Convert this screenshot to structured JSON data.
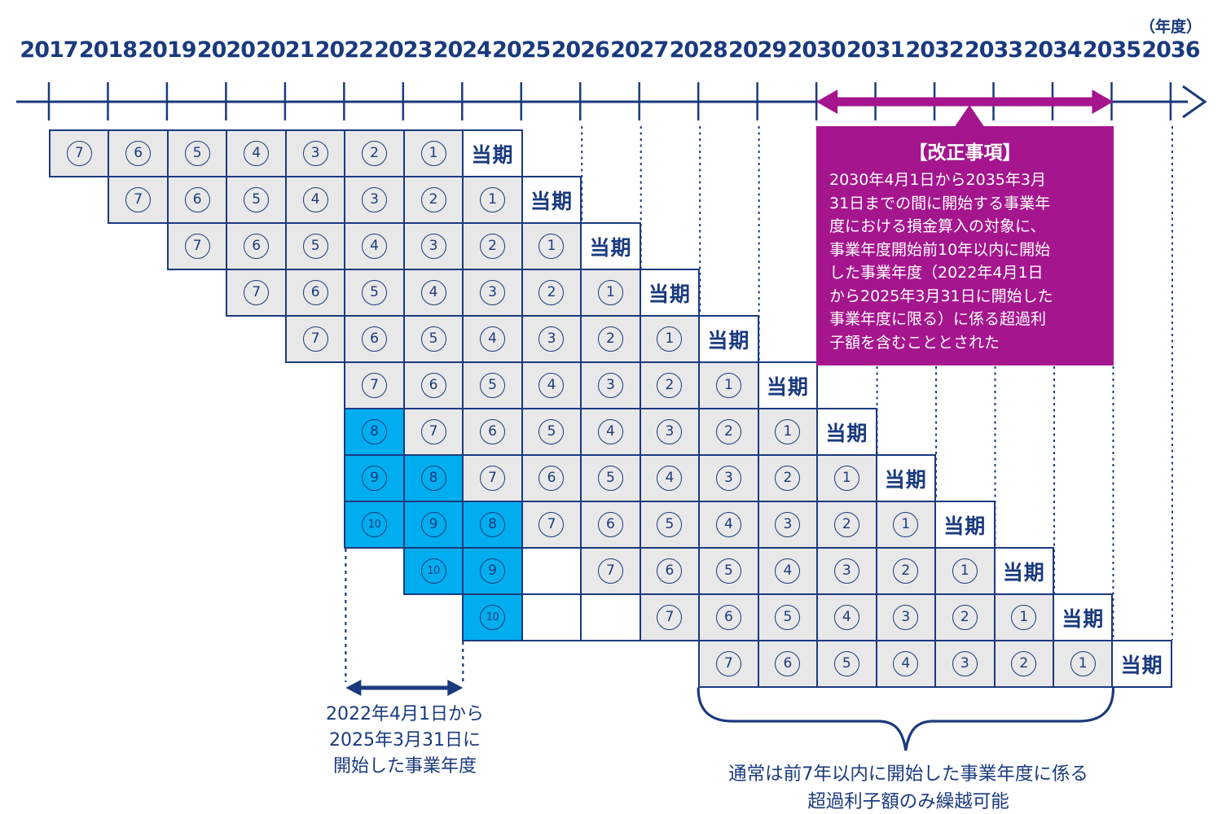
{
  "axis": {
    "unit": "（年度）",
    "years": [
      2017,
      2018,
      2019,
      2020,
      2021,
      2022,
      2023,
      2024,
      2025,
      2026,
      2027,
      2028,
      2029,
      2030,
      2031,
      2032,
      2033,
      2034,
      2035,
      2036
    ]
  },
  "revision_box": {
    "title": "【改正事項】",
    "lines": [
      "2030年4月1日から2035年3月",
      "31日までの間に開始する事業年",
      "度における損金算入の対象に、",
      "事業年度開始前10年以内に開始",
      "した事業年度（2022年4月1日",
      "から2025年3月31日に開始した",
      "事業年度に限る）に係る超過利",
      "子額を含むこととされた"
    ],
    "range_from_year": 2030,
    "range_to_year": 2035
  },
  "grid": {
    "current_label": "当期",
    "rows": [
      {
        "current_year": 2024,
        "cells": [
          [
            2017,
            "7",
            "g"
          ],
          [
            2018,
            "6",
            "g"
          ],
          [
            2019,
            "5",
            "g"
          ],
          [
            2020,
            "4",
            "g"
          ],
          [
            2021,
            "3",
            "g"
          ],
          [
            2022,
            "2",
            "g"
          ],
          [
            2023,
            "1",
            "g"
          ],
          [
            2024,
            "当期",
            "t"
          ]
        ]
      },
      {
        "current_year": 2025,
        "cells": [
          [
            2018,
            "7",
            "g"
          ],
          [
            2019,
            "6",
            "g"
          ],
          [
            2020,
            "5",
            "g"
          ],
          [
            2021,
            "4",
            "g"
          ],
          [
            2022,
            "3",
            "g"
          ],
          [
            2023,
            "2",
            "g"
          ],
          [
            2024,
            "1",
            "g"
          ],
          [
            2025,
            "当期",
            "t"
          ]
        ]
      },
      {
        "current_year": 2026,
        "cells": [
          [
            2019,
            "7",
            "g"
          ],
          [
            2020,
            "6",
            "g"
          ],
          [
            2021,
            "5",
            "g"
          ],
          [
            2022,
            "4",
            "g"
          ],
          [
            2023,
            "3",
            "g"
          ],
          [
            2024,
            "2",
            "g"
          ],
          [
            2025,
            "1",
            "g"
          ],
          [
            2026,
            "当期",
            "t"
          ]
        ]
      },
      {
        "current_year": 2027,
        "cells": [
          [
            2020,
            "7",
            "g"
          ],
          [
            2021,
            "6",
            "g"
          ],
          [
            2022,
            "5",
            "g"
          ],
          [
            2023,
            "4",
            "g"
          ],
          [
            2024,
            "3",
            "g"
          ],
          [
            2025,
            "2",
            "g"
          ],
          [
            2026,
            "1",
            "g"
          ],
          [
            2027,
            "当期",
            "t"
          ]
        ]
      },
      {
        "current_year": 2028,
        "cells": [
          [
            2021,
            "7",
            "g"
          ],
          [
            2022,
            "6",
            "g"
          ],
          [
            2023,
            "5",
            "g"
          ],
          [
            2024,
            "4",
            "g"
          ],
          [
            2025,
            "3",
            "g"
          ],
          [
            2026,
            "2",
            "g"
          ],
          [
            2027,
            "1",
            "g"
          ],
          [
            2028,
            "当期",
            "t"
          ]
        ]
      },
      {
        "current_year": 2029,
        "cells": [
          [
            2022,
            "7",
            "g"
          ],
          [
            2023,
            "6",
            "g"
          ],
          [
            2024,
            "5",
            "g"
          ],
          [
            2025,
            "4",
            "g"
          ],
          [
            2026,
            "3",
            "g"
          ],
          [
            2027,
            "2",
            "g"
          ],
          [
            2028,
            "1",
            "g"
          ],
          [
            2029,
            "当期",
            "t"
          ]
        ]
      },
      {
        "current_year": 2030,
        "cells": [
          [
            2022,
            "8",
            "c"
          ],
          [
            2023,
            "7",
            "g"
          ],
          [
            2024,
            "6",
            "g"
          ],
          [
            2025,
            "5",
            "g"
          ],
          [
            2026,
            "4",
            "g"
          ],
          [
            2027,
            "3",
            "g"
          ],
          [
            2028,
            "2",
            "g"
          ],
          [
            2029,
            "1",
            "g"
          ],
          [
            2030,
            "当期",
            "t"
          ]
        ]
      },
      {
        "current_year": 2031,
        "cells": [
          [
            2022,
            "9",
            "c"
          ],
          [
            2023,
            "8",
            "c"
          ],
          [
            2024,
            "7",
            "g"
          ],
          [
            2025,
            "6",
            "g"
          ],
          [
            2026,
            "5",
            "g"
          ],
          [
            2027,
            "4",
            "g"
          ],
          [
            2028,
            "3",
            "g"
          ],
          [
            2029,
            "2",
            "g"
          ],
          [
            2030,
            "1",
            "g"
          ],
          [
            2031,
            "当期",
            "t"
          ]
        ]
      },
      {
        "current_year": 2032,
        "cells": [
          [
            2022,
            "10",
            "c"
          ],
          [
            2023,
            "9",
            "c"
          ],
          [
            2024,
            "8",
            "c"
          ],
          [
            2025,
            "7",
            "g"
          ],
          [
            2026,
            "6",
            "g"
          ],
          [
            2027,
            "5",
            "g"
          ],
          [
            2028,
            "4",
            "g"
          ],
          [
            2029,
            "3",
            "g"
          ],
          [
            2030,
            "2",
            "g"
          ],
          [
            2031,
            "1",
            "g"
          ],
          [
            2032,
            "当期",
            "t"
          ]
        ]
      },
      {
        "current_year": 2033,
        "cells": [
          [
            2023,
            "10",
            "c"
          ],
          [
            2024,
            "9",
            "c"
          ],
          [
            2025,
            "",
            "b"
          ],
          [
            2026,
            "7",
            "g"
          ],
          [
            2027,
            "6",
            "g"
          ],
          [
            2028,
            "5",
            "g"
          ],
          [
            2029,
            "4",
            "g"
          ],
          [
            2030,
            "3",
            "g"
          ],
          [
            2031,
            "2",
            "g"
          ],
          [
            2032,
            "1",
            "g"
          ],
          [
            2033,
            "当期",
            "t"
          ]
        ]
      },
      {
        "current_year": 2034,
        "cells": [
          [
            2024,
            "10",
            "c"
          ],
          [
            2025,
            "",
            "b"
          ],
          [
            2026,
            "",
            "b"
          ],
          [
            2027,
            "7",
            "g"
          ],
          [
            2028,
            "6",
            "g"
          ],
          [
            2029,
            "5",
            "g"
          ],
          [
            2030,
            "4",
            "g"
          ],
          [
            2031,
            "3",
            "g"
          ],
          [
            2032,
            "2",
            "g"
          ],
          [
            2033,
            "1",
            "g"
          ],
          [
            2034,
            "当期",
            "t"
          ]
        ]
      },
      {
        "current_year": 2035,
        "cells": [
          [
            2028,
            "7",
            "g"
          ],
          [
            2029,
            "6",
            "g"
          ],
          [
            2030,
            "5",
            "g"
          ],
          [
            2031,
            "4",
            "g"
          ],
          [
            2032,
            "3",
            "g"
          ],
          [
            2033,
            "2",
            "g"
          ],
          [
            2034,
            "1",
            "g"
          ],
          [
            2035,
            "当期",
            "t"
          ]
        ]
      }
    ]
  },
  "annotations": {
    "special_period": {
      "lines": [
        "2022年4月1日から",
        "2025年3月31日に",
        "開始した事業年度"
      ],
      "from_year": 2022,
      "to_year": 2024
    },
    "normal_rule": {
      "lines": [
        "通常は前7年以内に開始した事業年度に係る",
        "超過利子額のみ繰越可能"
      ],
      "from_year": 2028,
      "to_year": 2035
    }
  },
  "colors": {
    "navy": "#1a3a7e",
    "cyan": "#00aeef",
    "magenta": "#a5158d",
    "cell_gray": "#e8e8e8"
  }
}
